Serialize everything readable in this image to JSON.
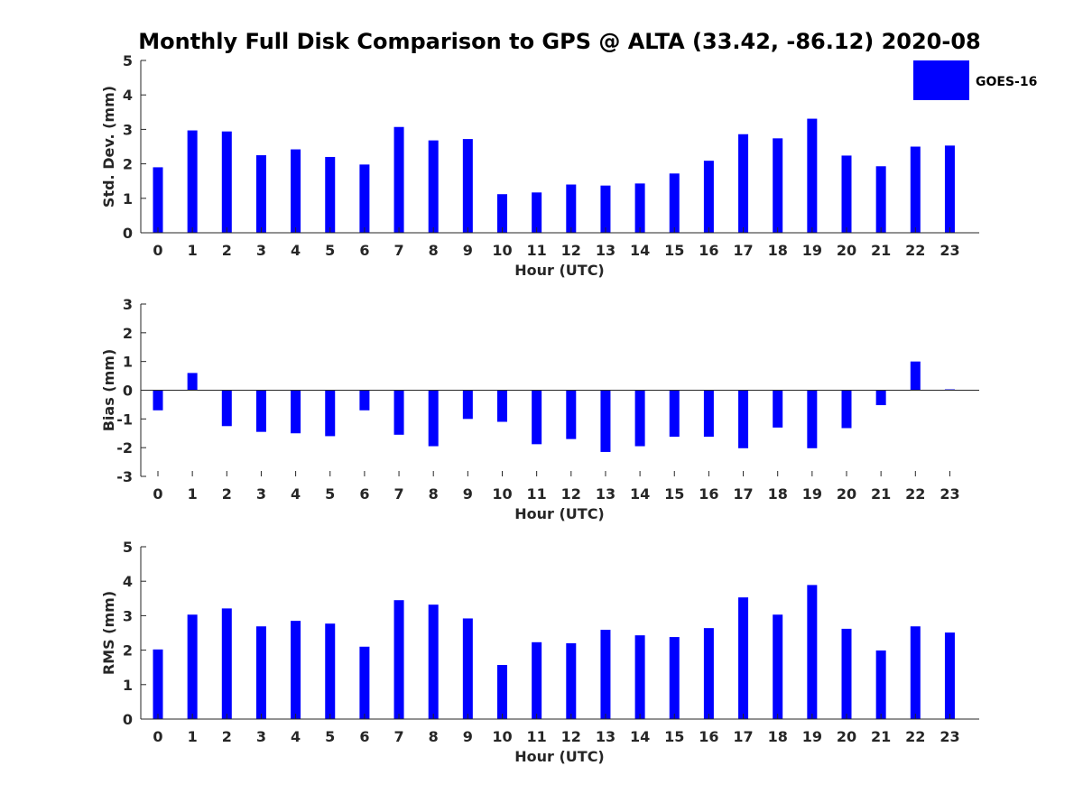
{
  "colors": {
    "bar": "#0000ff",
    "axis": "#262626"
  },
  "chart_data": {
    "type": "bar",
    "title": "Monthly Full Disk Comparison to GPS @ ALTA (33.42, -86.12) 2020-08",
    "legend": {
      "label": "GOES-16",
      "placement": "top-right"
    },
    "categories": [
      "0",
      "1",
      "2",
      "3",
      "4",
      "5",
      "6",
      "7",
      "8",
      "9",
      "10",
      "11",
      "12",
      "13",
      "14",
      "15",
      "16",
      "17",
      "18",
      "19",
      "20",
      "21",
      "22",
      "23"
    ],
    "subplots": [
      {
        "id": "std",
        "ylabel": "Std. Dev. (mm)",
        "xlabel": "Hour (UTC)",
        "ylim": [
          0,
          5
        ],
        "yticks": [
          0,
          1,
          2,
          3,
          4,
          5
        ],
        "series": [
          {
            "name": "GOES-16",
            "values": [
              1.9,
              2.97,
              2.94,
              2.25,
              2.42,
              2.2,
              1.98,
              3.07,
              2.68,
              2.72,
              1.12,
              1.17,
              1.4,
              1.37,
              1.43,
              1.72,
              2.09,
              2.86,
              2.74,
              3.31,
              2.24,
              1.93,
              2.5,
              2.53
            ]
          }
        ]
      },
      {
        "id": "bias",
        "ylabel": "Bias (mm)",
        "xlabel": "Hour (UTC)",
        "ylim": [
          -3,
          3
        ],
        "yticks": [
          -3,
          -2,
          -1,
          0,
          1,
          2,
          3
        ],
        "series": [
          {
            "name": "GOES-16",
            "values": [
              -0.7,
              0.6,
              -1.25,
              -1.45,
              -1.5,
              -1.6,
              -0.7,
              -1.55,
              -1.95,
              -1.0,
              -1.1,
              -1.88,
              -1.7,
              -2.15,
              -1.95,
              -1.62,
              -1.62,
              -2.02,
              -1.3,
              -2.02,
              -1.32,
              -0.52,
              1.0,
              0.03
            ]
          }
        ]
      },
      {
        "id": "rms",
        "ylabel": "RMS (mm)",
        "xlabel": "Hour (UTC)",
        "ylim": [
          0,
          5
        ],
        "yticks": [
          0,
          1,
          2,
          3,
          4,
          5
        ],
        "series": [
          {
            "name": "GOES-16",
            "values": [
              2.02,
              3.03,
              3.21,
              2.69,
              2.85,
              2.77,
              2.1,
              3.45,
              3.32,
              2.92,
              1.57,
              2.23,
              2.2,
              2.59,
              2.43,
              2.38,
              2.64,
              3.53,
              3.03,
              3.89,
              2.62,
              1.99,
              2.69,
              2.51
            ]
          }
        ]
      }
    ]
  }
}
